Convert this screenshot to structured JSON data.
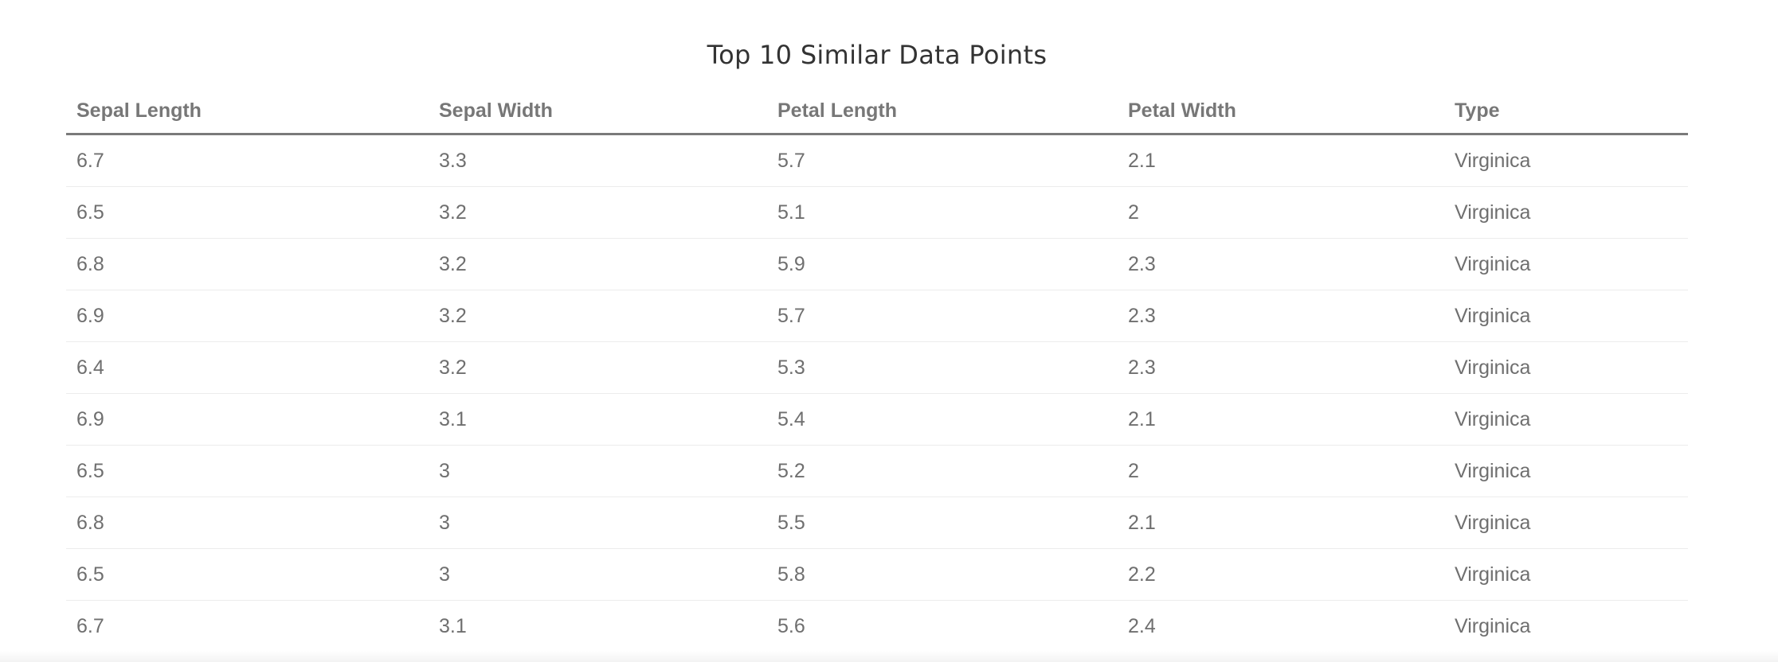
{
  "title": "Top 10 Similar Data Points",
  "table": {
    "columns": [
      "Sepal Length",
      "Sepal Width",
      "Petal Length",
      "Petal Width",
      "Type"
    ],
    "rows": [
      [
        "6.7",
        "3.3",
        "5.7",
        "2.1",
        "Virginica"
      ],
      [
        "6.5",
        "3.2",
        "5.1",
        "2",
        "Virginica"
      ],
      [
        "6.8",
        "3.2",
        "5.9",
        "2.3",
        "Virginica"
      ],
      [
        "6.9",
        "3.2",
        "5.7",
        "2.3",
        "Virginica"
      ],
      [
        "6.4",
        "3.2",
        "5.3",
        "2.3",
        "Virginica"
      ],
      [
        "6.9",
        "3.1",
        "5.4",
        "2.1",
        "Virginica"
      ],
      [
        "6.5",
        "3",
        "5.2",
        "2",
        "Virginica"
      ],
      [
        "6.8",
        "3",
        "5.5",
        "2.1",
        "Virginica"
      ],
      [
        "6.5",
        "3",
        "5.8",
        "2.2",
        "Virginica"
      ],
      [
        "6.7",
        "3.1",
        "5.6",
        "2.4",
        "Virginica"
      ]
    ]
  }
}
